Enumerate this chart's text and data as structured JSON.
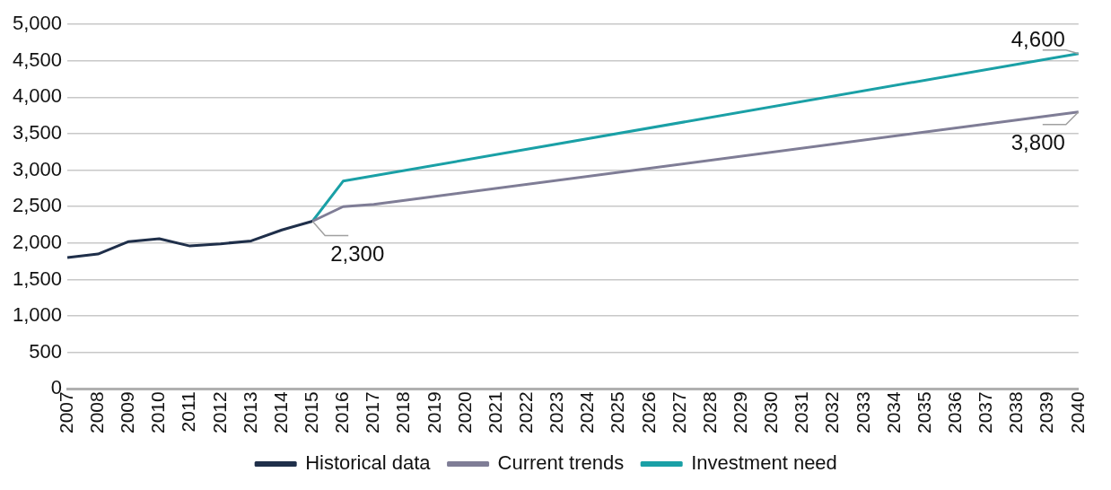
{
  "chart_data": {
    "type": "line",
    "categories": [
      "2007",
      "2008",
      "2009",
      "2010",
      "2011",
      "2012",
      "2013",
      "2014",
      "2015",
      "2016",
      "2017",
      "2018",
      "2019",
      "2020",
      "2021",
      "2022",
      "2023",
      "2024",
      "2025",
      "2026",
      "2027",
      "2028",
      "2029",
      "2030",
      "2031",
      "2032",
      "2033",
      "2034",
      "2035",
      "2036",
      "2037",
      "2038",
      "2039",
      "2040"
    ],
    "series": [
      {
        "name": "Historical data",
        "color": "#1f2f4a",
        "values": [
          1800,
          1850,
          2020,
          2060,
          1960,
          1990,
          2030,
          2180,
          2300,
          null,
          null,
          null,
          null,
          null,
          null,
          null,
          null,
          null,
          null,
          null,
          null,
          null,
          null,
          null,
          null,
          null,
          null,
          null,
          null,
          null,
          null,
          null,
          null,
          null
        ]
      },
      {
        "name": "Current trends",
        "color": "#7f7d96",
        "values": [
          null,
          null,
          null,
          null,
          null,
          null,
          null,
          null,
          2300,
          2500,
          2530,
          null,
          null,
          null,
          null,
          null,
          null,
          null,
          null,
          null,
          null,
          null,
          null,
          null,
          null,
          null,
          null,
          null,
          null,
          null,
          null,
          null,
          null,
          3800
        ]
      },
      {
        "name": "Investment need",
        "color": "#1aa0a6",
        "values": [
          null,
          null,
          null,
          null,
          null,
          null,
          null,
          null,
          2300,
          2850,
          null,
          null,
          null,
          null,
          null,
          null,
          null,
          null,
          null,
          null,
          null,
          null,
          null,
          null,
          null,
          null,
          null,
          null,
          null,
          null,
          null,
          null,
          null,
          4600
        ]
      }
    ],
    "ylim": [
      0,
      5000
    ],
    "yticks": [
      {
        "value": 0,
        "label": "0"
      },
      {
        "value": 500,
        "label": "500"
      },
      {
        "value": 1000,
        "label": "1,000"
      },
      {
        "value": 1500,
        "label": "1,500"
      },
      {
        "value": 2000,
        "label": "2,000"
      },
      {
        "value": 2500,
        "label": "2,500"
      },
      {
        "value": 3000,
        "label": "3,000"
      },
      {
        "value": 3500,
        "label": "3,500"
      },
      {
        "value": 4000,
        "label": "4,000"
      },
      {
        "value": 4500,
        "label": "4,500"
      },
      {
        "value": 5000,
        "label": "5,000"
      }
    ],
    "grid": "y",
    "legend": "bottom",
    "marker": "none",
    "line_style": "solid",
    "annotations": [
      {
        "text": "2,300",
        "x": "2015",
        "y": 2300
      },
      {
        "text": "4,600",
        "x": "2040",
        "y": 4600
      },
      {
        "text": "3,800",
        "x": "2040",
        "y": 3800
      }
    ]
  }
}
